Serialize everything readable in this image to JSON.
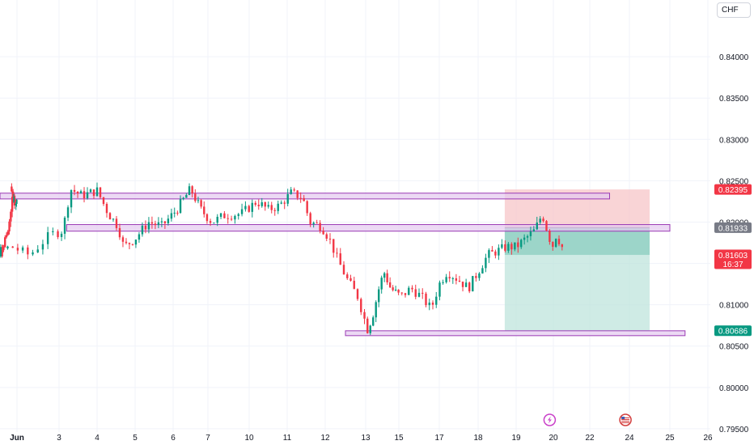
{
  "currency_label": "CHF",
  "chart_data": {
    "type": "candlestick",
    "instrument_currency": "CHF",
    "y_ticks": [
      "0.84000",
      "0.83500",
      "0.83000",
      "0.82500",
      "0.82000",
      "0.81500",
      "0.81000",
      "0.80500",
      "0.80000",
      "0.79500"
    ],
    "ylim": [
      0.7946,
      0.8452
    ],
    "x_ticks": [
      {
        "label": "Jun",
        "day": 1
      },
      {
        "label": "3",
        "day": 3
      },
      {
        "label": "4",
        "day": 4
      },
      {
        "label": "5",
        "day": 5
      },
      {
        "label": "6",
        "day": 6
      },
      {
        "label": "7",
        "day": 7
      },
      {
        "label": "10",
        "day": 8
      },
      {
        "label": "11",
        "day": 9
      },
      {
        "label": "12",
        "day": 10
      },
      {
        "label": "13",
        "day": 11
      },
      {
        "label": "15",
        "day": 12
      },
      {
        "label": "17",
        "day": 13
      },
      {
        "label": "18",
        "day": 14
      },
      {
        "label": "19",
        "day": 15
      },
      {
        "label": "20",
        "day": 16
      },
      {
        "label": "22",
        "day": 17
      },
      {
        "label": "24",
        "day": 18
      },
      {
        "label": "25",
        "day": 19
      },
      {
        "label": "26",
        "day": 20
      }
    ],
    "price_path": [
      [
        0.6,
        0.8243
      ],
      [
        0.9,
        0.8222
      ],
      [
        1.2,
        0.823
      ],
      [
        1.5,
        0.8185
      ],
      [
        1.8,
        0.8162
      ],
      [
        2.2,
        0.817
      ],
      [
        2.5,
        0.816
      ],
      [
        2.85,
        0.8185
      ],
      [
        3.1,
        0.819
      ],
      [
        3.3,
        0.824
      ],
      [
        3.6,
        0.8232
      ],
      [
        4.0,
        0.8238
      ],
      [
        4.3,
        0.821
      ],
      [
        4.55,
        0.8195
      ],
      [
        4.7,
        0.817
      ],
      [
        5.0,
        0.818
      ],
      [
        5.35,
        0.82
      ],
      [
        5.7,
        0.8195
      ],
      [
        6.1,
        0.8215
      ],
      [
        6.5,
        0.824
      ],
      [
        6.8,
        0.8215
      ],
      [
        7.1,
        0.82
      ],
      [
        7.4,
        0.8208
      ],
      [
        7.8,
        0.821
      ],
      [
        8.2,
        0.8225
      ],
      [
        8.5,
        0.8215
      ],
      [
        8.8,
        0.822
      ],
      [
        9.1,
        0.8235
      ],
      [
        9.4,
        0.823
      ],
      [
        9.6,
        0.82
      ],
      [
        9.9,
        0.8195
      ],
      [
        10.1,
        0.818
      ],
      [
        10.3,
        0.8155
      ],
      [
        10.55,
        0.813
      ],
      [
        10.8,
        0.811
      ],
      [
        11.05,
        0.807
      ],
      [
        11.2,
        0.8085
      ],
      [
        11.4,
        0.812
      ],
      [
        11.55,
        0.814
      ],
      [
        11.75,
        0.812
      ],
      [
        12.05,
        0.811
      ],
      [
        12.3,
        0.812
      ],
      [
        12.55,
        0.811
      ],
      [
        12.8,
        0.8095
      ],
      [
        13.0,
        0.8125
      ],
      [
        13.2,
        0.814
      ],
      [
        13.5,
        0.813
      ],
      [
        13.75,
        0.812
      ],
      [
        14.0,
        0.814
      ],
      [
        14.25,
        0.816
      ],
      [
        14.5,
        0.8165
      ],
      [
        14.75,
        0.817
      ],
      [
        15.0,
        0.817
      ],
      [
        15.25,
        0.818
      ],
      [
        15.5,
        0.819
      ],
      [
        15.7,
        0.821
      ],
      [
        15.8,
        0.8195
      ],
      [
        15.9,
        0.818
      ],
      [
        15.95,
        0.8165
      ],
      [
        16.05,
        0.8185
      ],
      [
        16.2,
        0.8175
      ],
      [
        16.3,
        0.8162
      ]
    ],
    "current_price_countdown": "16:37",
    "price_labels": [
      {
        "value": "0.82395",
        "price": 0.82395,
        "color": "#f23645"
      },
      {
        "value": "0.81933",
        "price": 0.81933,
        "color": "#787b86"
      },
      {
        "value": "0.81603",
        "price": 0.81603,
        "color": "#f23645"
      },
      {
        "value": "0.80686",
        "price": 0.80686,
        "color": "#089981"
      }
    ],
    "zones": [
      {
        "name": "resistance-zone-upper",
        "day_from": 0.0,
        "day_to": 17.5,
        "price_low": 0.8228,
        "price_high": 0.8235
      },
      {
        "name": "resistance-zone-middle",
        "day_from": 3.2,
        "day_to": 19.0,
        "price_low": 0.8189,
        "price_high": 0.8197
      },
      {
        "name": "support-zone-lower",
        "day_from": 10.5,
        "day_to": 19.4,
        "price_low": 0.80655,
        "price_high": 0.80685
      }
    ],
    "position": {
      "type": "short",
      "day_from": 14.7,
      "day_to": 18.5,
      "entry": 0.81933,
      "stop": 0.82395,
      "target": 0.80686,
      "current": 0.81603,
      "stop_color": "#f7c5c8",
      "target_color": "#bfe4dc",
      "filled_target_color": "#8fd0c2"
    },
    "event_markers": [
      {
        "name": "lightning-event-icon",
        "day": 15.9,
        "color": "#c940c9"
      },
      {
        "name": "us-flag-event-icon",
        "day": 17.9,
        "color": "#d23b3b"
      }
    ],
    "colors": {
      "up": "#089981",
      "down": "#f23645",
      "zone_fill": "#e4c9f0",
      "zone_border": "#9b3bb5",
      "grid": "#f0f3fa"
    },
    "grid": true
  }
}
